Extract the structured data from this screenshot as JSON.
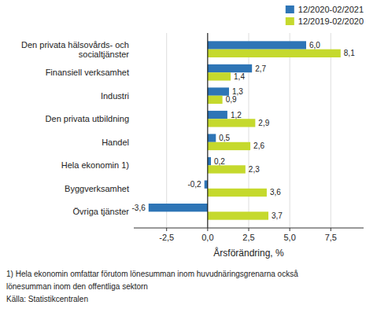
{
  "chart_data": {
    "type": "bar",
    "orientation": "horizontal",
    "categories": [
      "Övriga tjänster",
      "Byggverksamhet",
      "Hela ekonomin 1)",
      "Handel",
      "Den privata utbildning",
      "Industri",
      "Finansiell verksamhet",
      "Den privata hälsovårds- och\nsocialtjänster"
    ],
    "series": [
      {
        "name": "12/2020-02/2021",
        "color": "#2E75B6",
        "values": [
          -3.6,
          -0.2,
          0.2,
          0.5,
          1.2,
          1.3,
          2.7,
          6.0
        ],
        "value_labels": [
          "-3,6",
          "-0,2",
          "0,2",
          "0,5",
          "1,2",
          "1,3",
          "2,7",
          "6,0"
        ]
      },
      {
        "name": "12/2019-02/2020",
        "color": "#C5D92D",
        "values": [
          3.7,
          3.6,
          2.3,
          2.6,
          2.9,
          0.9,
          1.4,
          8.1
        ],
        "value_labels": [
          "3,7",
          "3,6",
          "2,3",
          "2,6",
          "2,9",
          "0,9",
          "1,4",
          "8,1"
        ]
      }
    ],
    "xlabel": "Årsförändring, %",
    "xlim": [
      -4.5,
      9.5
    ],
    "xticks": [
      {
        "value": -2.5,
        "label": "-2,5"
      },
      {
        "value": 0.0,
        "label": "0,0"
      },
      {
        "value": 2.5,
        "label": "2,5"
      },
      {
        "value": 5.0,
        "label": "5,0"
      },
      {
        "value": 7.5,
        "label": "7,5"
      }
    ],
    "grid": true,
    "legend": "upper right",
    "data_labels": true,
    "notes": [
      "1) Hela ekonomin omfattar förutom lönesumman inom huvudnäringsgrenarna också",
      "lönesumman inom den offentliga sektorn",
      "Källa: Statistikcentralen"
    ]
  }
}
